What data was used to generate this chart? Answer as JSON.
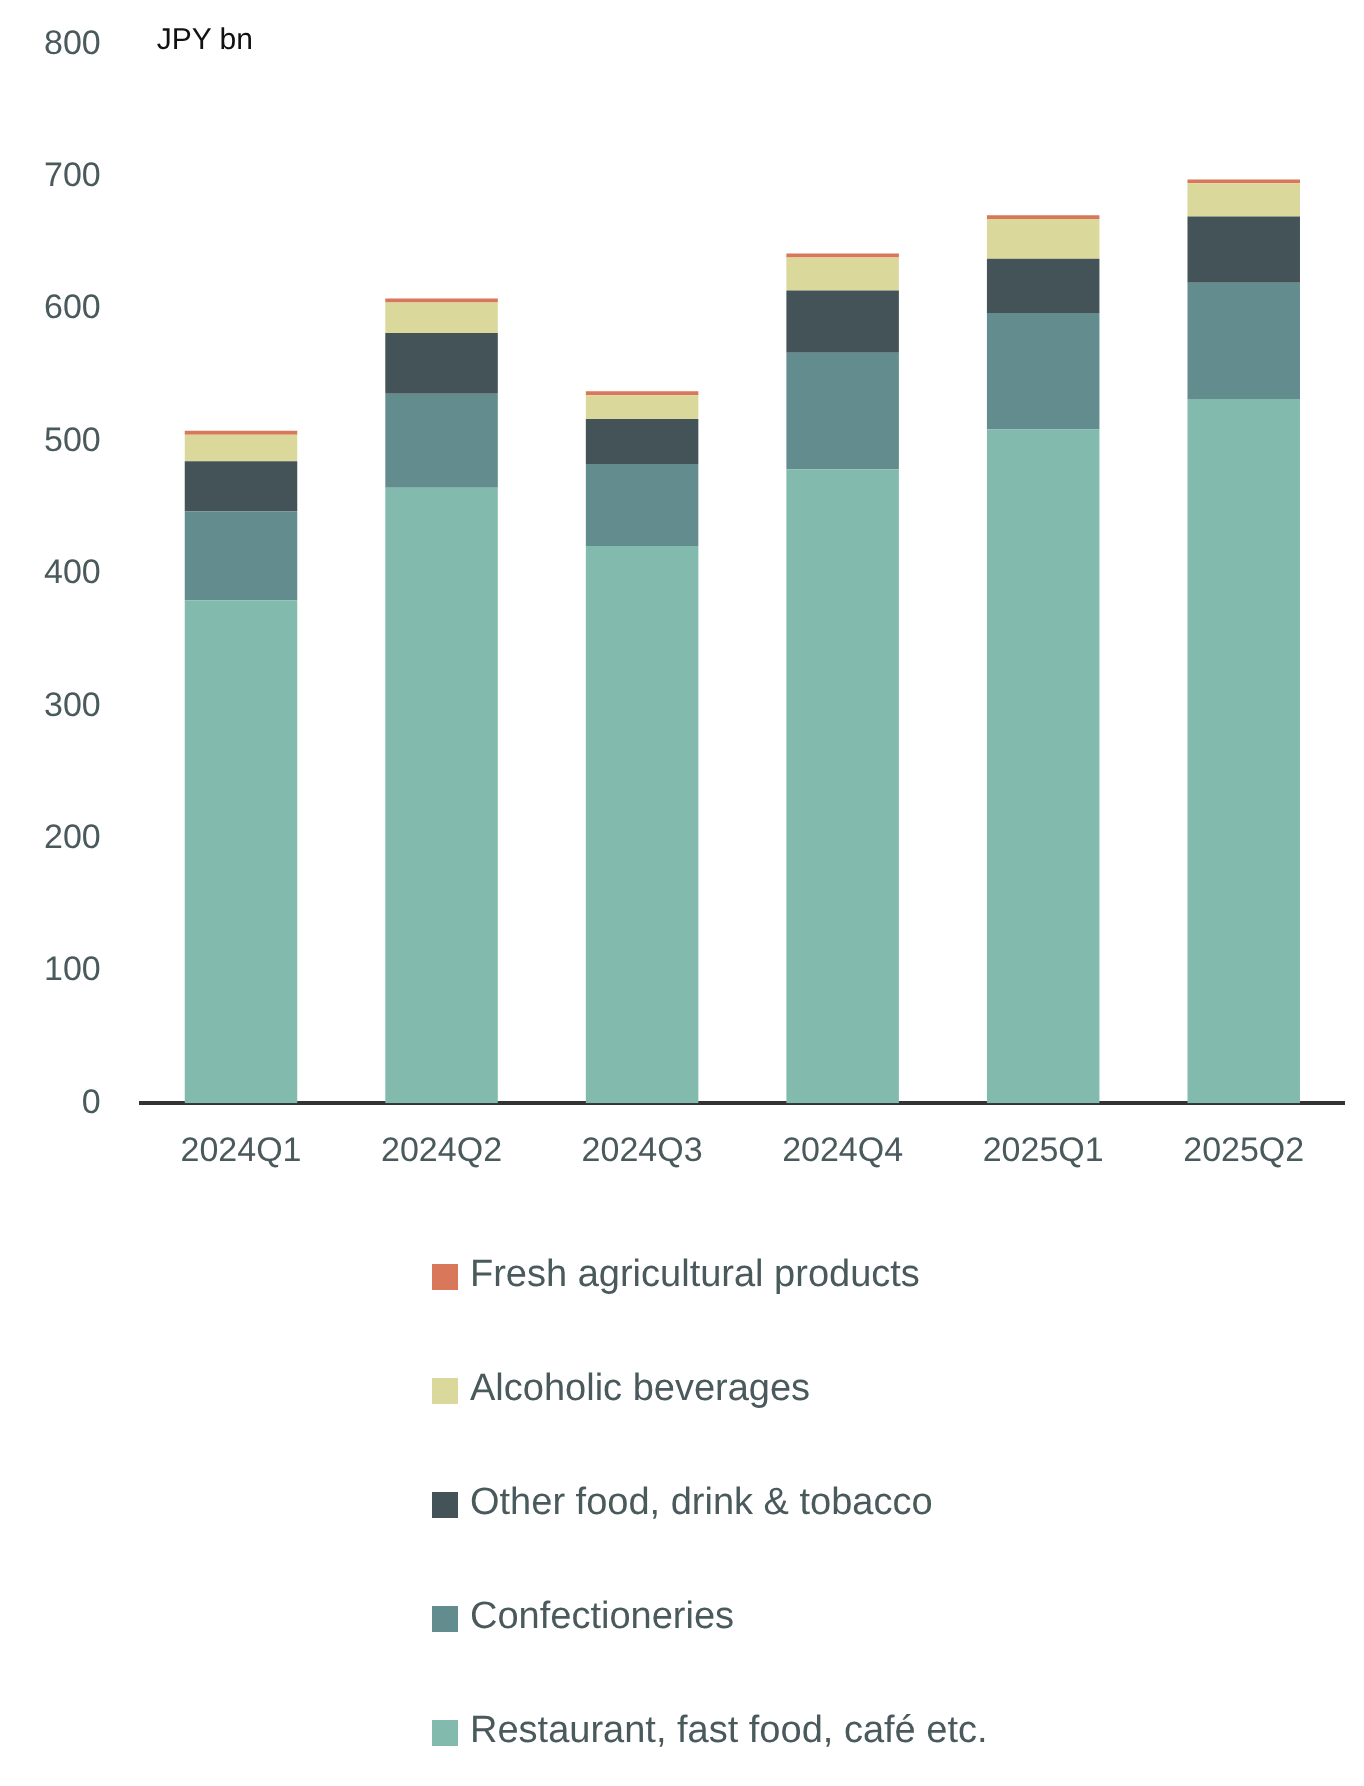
{
  "chart_data": {
    "type": "bar",
    "stacked": true,
    "ylabel": "JPY bn",
    "categories": [
      "2024Q1",
      "2024Q2",
      "2024Q3",
      "2024Q4",
      "2025Q1",
      "2025Q2"
    ],
    "series": [
      {
        "name": "Restaurant, fast food, café etc.",
        "color": "#82bbad",
        "values": [
          380,
          465,
          421,
          479,
          509,
          532
        ]
      },
      {
        "name": "Confectioneries",
        "color": "#638c8f",
        "values": [
          67,
          71,
          62,
          88,
          88,
          88
        ]
      },
      {
        "name": "Other food, drink & tobacco",
        "color": "#435357",
        "values": [
          38,
          46,
          34,
          47,
          41,
          50
        ]
      },
      {
        "name": "Alcoholic beverages",
        "color": "#dbd89c",
        "values": [
          20,
          23,
          18,
          25,
          30,
          25
        ]
      },
      {
        "name": "Fresh agricultural products",
        "color": "#d9775a",
        "values": [
          3,
          3,
          3,
          3,
          3,
          3
        ]
      }
    ],
    "ylim": [
      0,
      800
    ],
    "yticks": [
      0,
      100,
      200,
      300,
      400,
      500,
      600,
      700,
      800
    ],
    "grid": false,
    "legend": "bottom"
  }
}
